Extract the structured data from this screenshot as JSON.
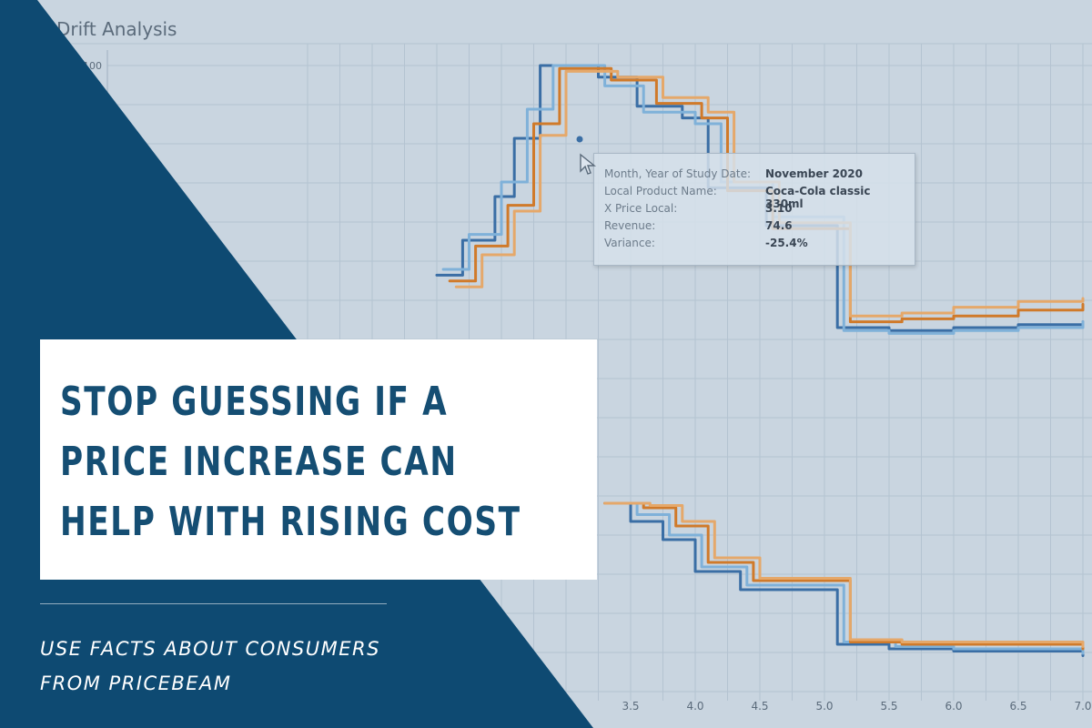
{
  "chart_data": {
    "type": "line",
    "title": "Drift Analysis",
    "ytick_labels": [
      "100"
    ],
    "xtick_labels": [
      "3.5",
      "4.0",
      "4.5",
      "5.0",
      "5.5",
      "6.0",
      "6.5",
      "7.0"
    ],
    "upper_panel": {
      "series": [
        {
          "color": "#3a6ea5",
          "values": [
            [
              2.0,
              28
            ],
            [
              2.2,
              40
            ],
            [
              2.45,
              55
            ],
            [
              2.6,
              75
            ],
            [
              2.8,
              100
            ],
            [
              3.25,
              96
            ],
            [
              3.55,
              86
            ],
            [
              3.9,
              82
            ],
            [
              4.1,
              58
            ],
            [
              4.55,
              45
            ],
            [
              5.1,
              10
            ],
            [
              5.5,
              9
            ],
            [
              6.0,
              10
            ],
            [
              6.5,
              11
            ],
            [
              7.0,
              12
            ]
          ]
        },
        {
          "color": "#7fb1d9",
          "values": [
            [
              2.05,
              30
            ],
            [
              2.25,
              42
            ],
            [
              2.5,
              60
            ],
            [
              2.7,
              85
            ],
            [
              2.9,
              100
            ],
            [
              3.3,
              93
            ],
            [
              3.6,
              84
            ],
            [
              4.0,
              80
            ],
            [
              4.2,
              60
            ],
            [
              4.6,
              48
            ],
            [
              5.15,
              9
            ],
            [
              5.5,
              8
            ],
            [
              6.0,
              9
            ],
            [
              6.5,
              10
            ],
            [
              7.0,
              12
            ]
          ]
        },
        {
          "color": "#d07a2a",
          "values": [
            [
              2.1,
              26
            ],
            [
              2.3,
              38
            ],
            [
              2.55,
              52
            ],
            [
              2.75,
              80
            ],
            [
              2.95,
              99
            ],
            [
              3.35,
              95
            ],
            [
              3.7,
              87
            ],
            [
              4.05,
              82
            ],
            [
              4.25,
              57
            ],
            [
              4.6,
              44
            ],
            [
              5.2,
              12
            ],
            [
              5.6,
              13
            ],
            [
              6.0,
              14
            ],
            [
              6.5,
              16
            ],
            [
              7.0,
              18
            ]
          ]
        },
        {
          "color": "#e5a86a",
          "values": [
            [
              2.15,
              24
            ],
            [
              2.35,
              35
            ],
            [
              2.6,
              50
            ],
            [
              2.8,
              76
            ],
            [
              3.0,
              98
            ],
            [
              3.4,
              96
            ],
            [
              3.75,
              89
            ],
            [
              4.1,
              84
            ],
            [
              4.3,
              60
            ],
            [
              4.65,
              46
            ],
            [
              5.2,
              14
            ],
            [
              5.6,
              15
            ],
            [
              6.0,
              17
            ],
            [
              6.5,
              19
            ],
            [
              7.0,
              20
            ]
          ]
        }
      ]
    },
    "lower_panel": {
      "series": [
        {
          "color": "#3a6ea5",
          "values": [
            [
              3.3,
              100
            ],
            [
              3.5,
              92
            ],
            [
              3.75,
              84
            ],
            [
              4.0,
              70
            ],
            [
              4.35,
              62
            ],
            [
              5.1,
              38
            ],
            [
              5.5,
              36
            ],
            [
              6.0,
              35
            ],
            [
              6.5,
              35
            ],
            [
              7.0,
              33
            ]
          ]
        },
        {
          "color": "#7fb1d9",
          "values": [
            [
              3.3,
              100
            ],
            [
              3.55,
              95
            ],
            [
              3.8,
              86
            ],
            [
              4.05,
              72
            ],
            [
              4.4,
              64
            ],
            [
              5.15,
              39
            ],
            [
              5.55,
              37
            ],
            [
              6.0,
              36
            ],
            [
              6.5,
              36
            ],
            [
              7.0,
              34
            ]
          ]
        },
        {
          "color": "#d07a2a",
          "values": [
            [
              3.3,
              100
            ],
            [
              3.6,
              98
            ],
            [
              3.85,
              90
            ],
            [
              4.1,
              74
            ],
            [
              4.45,
              66
            ],
            [
              5.2,
              39
            ],
            [
              5.6,
              38
            ],
            [
              6.0,
              38
            ],
            [
              6.5,
              38
            ],
            [
              7.0,
              36
            ]
          ]
        },
        {
          "color": "#e5a86a",
          "values": [
            [
              3.3,
              100
            ],
            [
              3.65,
              99
            ],
            [
              3.9,
              92
            ],
            [
              4.15,
              76
            ],
            [
              4.5,
              67
            ],
            [
              5.2,
              40
            ],
            [
              5.6,
              39
            ],
            [
              6.0,
              39
            ],
            [
              6.5,
              39
            ],
            [
              7.0,
              37
            ]
          ]
        }
      ]
    }
  },
  "tooltip": {
    "rows": [
      {
        "label": "Month, Year of Study Date:",
        "value": "November 2020"
      },
      {
        "label": "Local Product Name:",
        "value": "Coca-Cola classic 330ml"
      },
      {
        "label": "X Price Local:",
        "value": "3.10"
      },
      {
        "label": "Revenue:",
        "value": "74.6"
      },
      {
        "label": "Variance:",
        "value": "-25.4%"
      }
    ]
  },
  "headline": {
    "line1": "STOP GUESSING IF A",
    "line2": "PRICE INCREASE CAN",
    "line3": "HELP WITH RISING COST"
  },
  "subline": {
    "line1": "USE FACTS ABOUT CONSUMERS",
    "line2": "FROM PRICEBEAM"
  },
  "colors": {
    "brand_navy": "#0e4a72",
    "headline_text": "#154e73",
    "chart_bg": "#c9d5e0"
  }
}
